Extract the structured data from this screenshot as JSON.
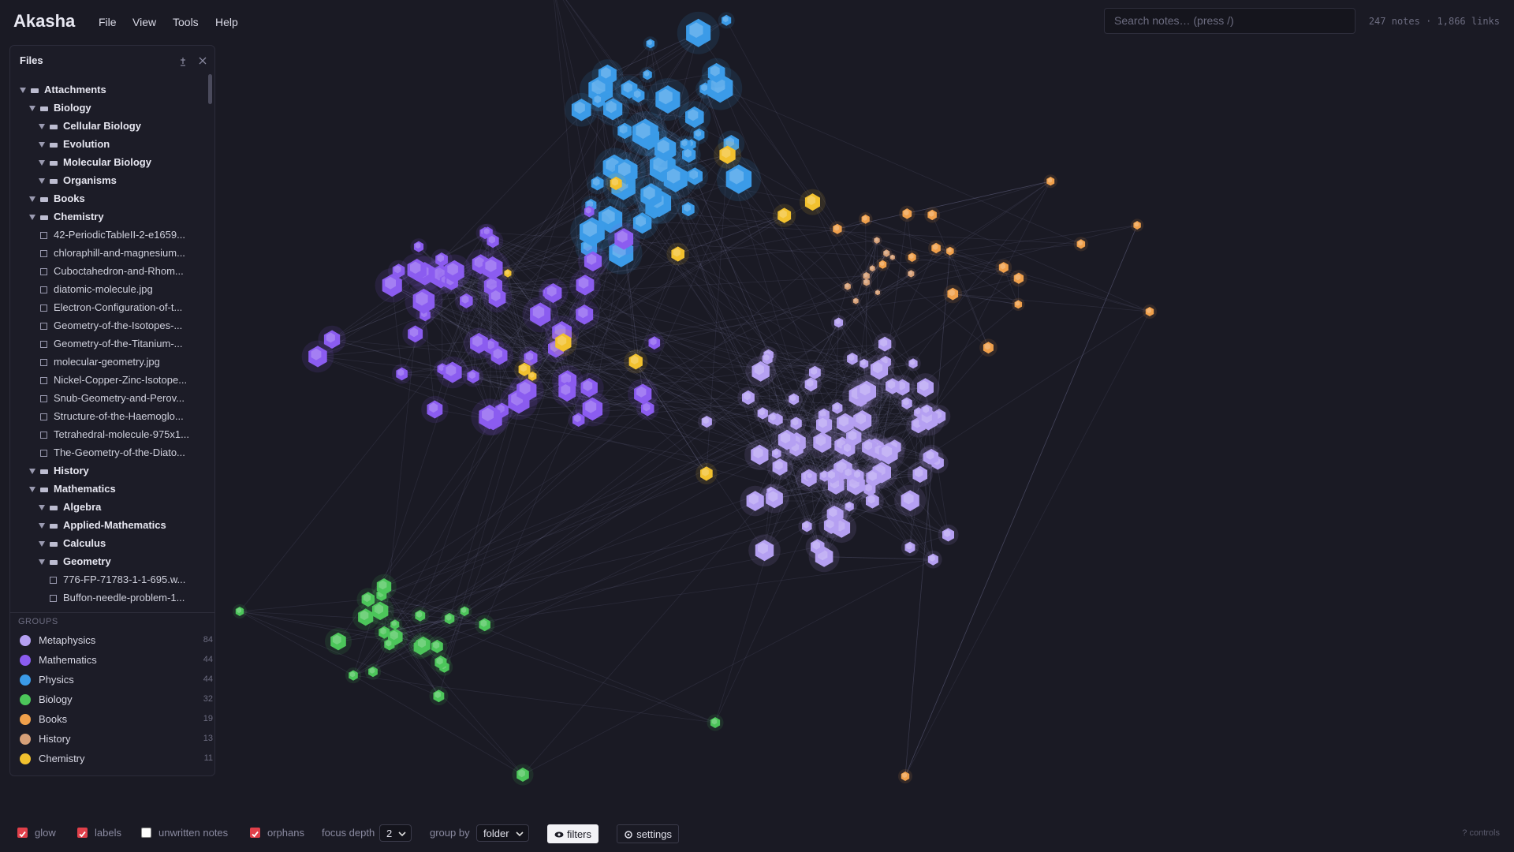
{
  "header": {
    "title": "Akasha",
    "menu": [
      "File",
      "View",
      "Tools",
      "Help"
    ],
    "search_placeholder": "Search notes… (press /)",
    "stats": "247 notes · 1,866 links"
  },
  "sidebar": {
    "title": "Files",
    "tree": [
      {
        "name": "Attachments",
        "children": [
          {
            "name": "Biology",
            "children": [
              {
                "name": "Cellular Biology",
                "children": []
              },
              {
                "name": "Evolution",
                "children": []
              },
              {
                "name": "Molecular Biology",
                "children": []
              },
              {
                "name": "Organisms",
                "children": []
              }
            ]
          },
          {
            "name": "Books",
            "children": []
          },
          {
            "name": "Chemistry",
            "children": [
              {
                "name": "42-PeriodicTableII-2-e1659..."
              },
              {
                "name": "chloraphill-and-magnesium..."
              },
              {
                "name": "Cuboctahedron-and-Rhom..."
              },
              {
                "name": "diatomic-molecule.jpg"
              },
              {
                "name": "Electron-Configuration-of-t..."
              },
              {
                "name": "Geometry-of-the-Isotopes-..."
              },
              {
                "name": "Geometry-of-the-Titanium-..."
              },
              {
                "name": "molecular-geometry.jpg"
              },
              {
                "name": "Nickel-Copper-Zinc-Isotope..."
              },
              {
                "name": "Snub-Geometry-and-Perov..."
              },
              {
                "name": "Structure-of-the-Haemoglo..."
              },
              {
                "name": "Tetrahedral-molecule-975x1..."
              },
              {
                "name": "The-Geometry-of-the-Diato..."
              }
            ]
          },
          {
            "name": "History",
            "children": []
          },
          {
            "name": "Mathematics",
            "children": [
              {
                "name": "Algebra",
                "children": []
              },
              {
                "name": "Applied-Mathematics",
                "children": []
              },
              {
                "name": "Calculus",
                "children": []
              },
              {
                "name": "Geometry",
                "children": [
                  {
                    "name": "776-FP-71783-1-1-695.w..."
                  },
                  {
                    "name": "Buffon-needle-problem-1..."
                  }
                ]
              }
            ]
          }
        ]
      }
    ],
    "groups_title": "GROUPS",
    "groups": [
      {
        "name": "Metaphysics",
        "count": 84,
        "color": "#b5a0f2"
      },
      {
        "name": "Mathematics",
        "count": 44,
        "color": "#8b5cf0"
      },
      {
        "name": "Physics",
        "count": 44,
        "color": "#3b9be8"
      },
      {
        "name": "Biology",
        "count": 32,
        "color": "#4cc65a"
      },
      {
        "name": "Books",
        "count": 19,
        "color": "#f0a04b"
      },
      {
        "name": "History",
        "count": 13,
        "color": "#d6a078"
      },
      {
        "name": "Chemistry",
        "count": 11,
        "color": "#f2c12e"
      }
    ]
  },
  "controls": {
    "toggles": [
      {
        "label": "glow",
        "checked": true
      },
      {
        "label": "labels",
        "checked": true
      },
      {
        "label": "unwritten notes",
        "checked": false
      },
      {
        "label": "orphans",
        "checked": true
      }
    ],
    "focus_depth": {
      "label": "focus depth",
      "value": "2"
    },
    "group_by": {
      "label": "group by",
      "value": "folder"
    },
    "buttons": [
      "filters",
      "settings"
    ],
    "help": "? controls"
  }
}
